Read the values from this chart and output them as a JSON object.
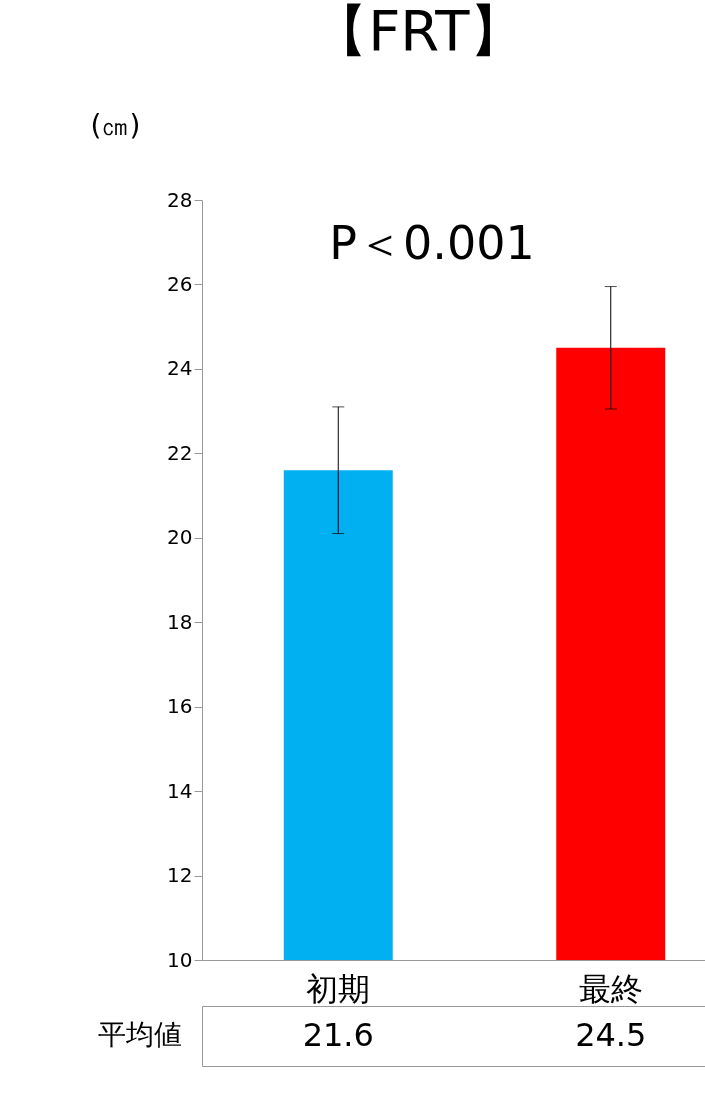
{
  "chart_data": {
    "type": "bar",
    "title": "【FRT】",
    "ylabel": "(㎝)",
    "categories": [
      "初期",
      "最終"
    ],
    "values": [
      21.6,
      24.5
    ],
    "colors": [
      "#00b0f0",
      "#ff0000"
    ],
    "errors": [
      1.5,
      1.45
    ],
    "ylim": [
      10,
      28
    ],
    "yticks": [
      10,
      12,
      14,
      16,
      18,
      20,
      22,
      24,
      26,
      28
    ],
    "grid": false,
    "data_labels": true,
    "annotations": [
      "P＜0.001",
      "平均値"
    ]
  }
}
